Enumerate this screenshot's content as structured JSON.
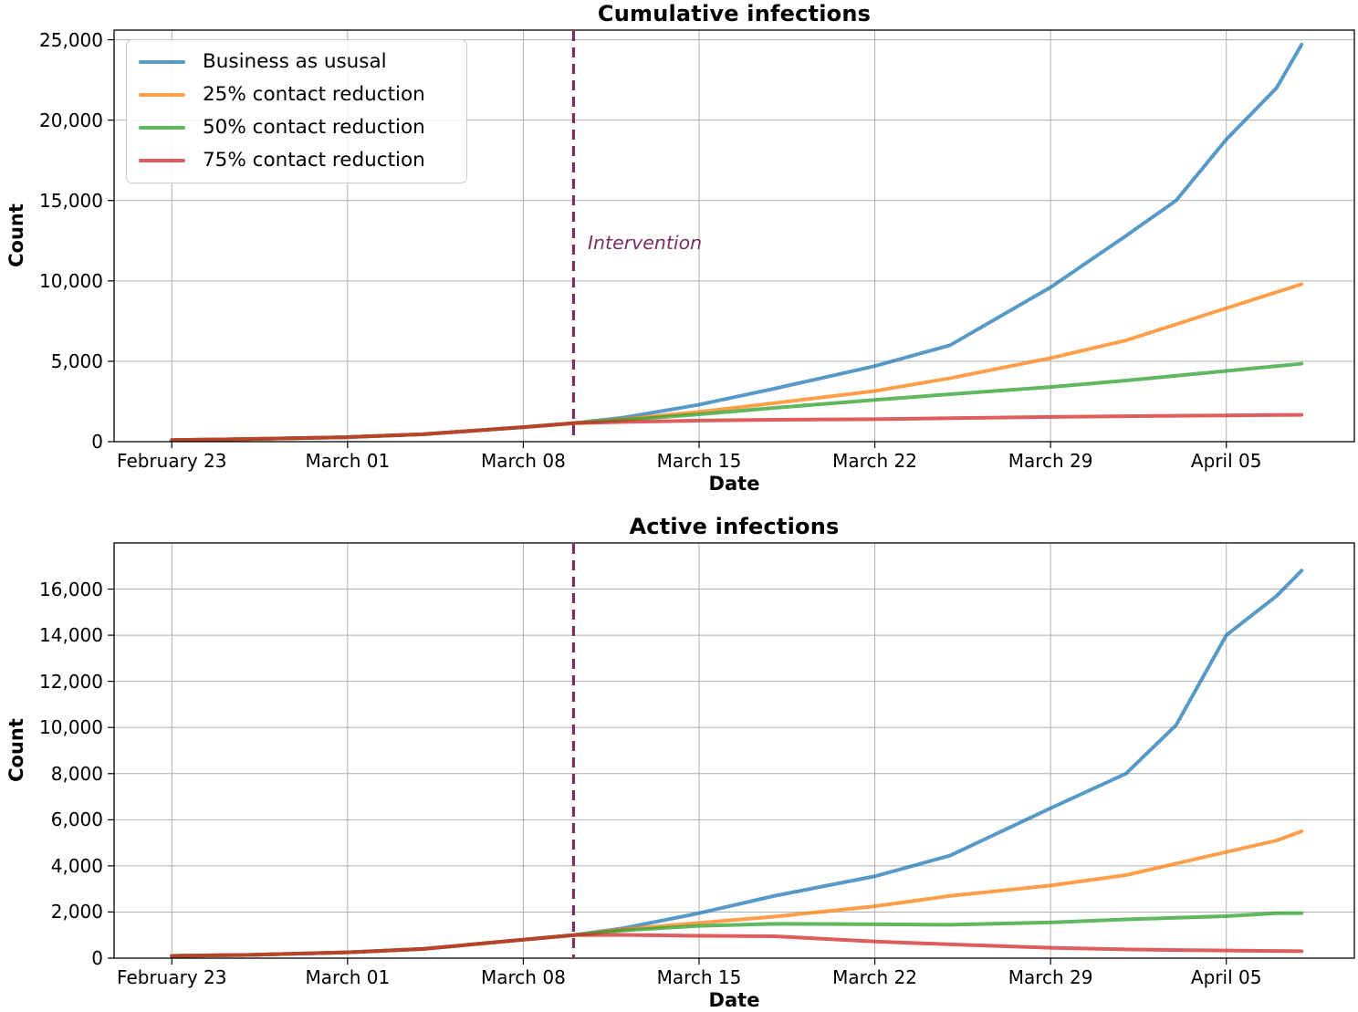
{
  "colors": {
    "grid": "#b0b0b0",
    "spine": "#000000",
    "intervention_line": "#7a2f62",
    "annotation_text": "#7a2f62"
  },
  "annotation": {
    "label": "Intervention"
  },
  "x_axis": {
    "ticks": [
      {
        "day": 0,
        "label": "February 23"
      },
      {
        "day": 7,
        "label": "March 01"
      },
      {
        "day": 14,
        "label": "March 08"
      },
      {
        "day": 21,
        "label": "March 15"
      },
      {
        "day": 28,
        "label": "March 22"
      },
      {
        "day": 35,
        "label": "March 29"
      },
      {
        "day": 42,
        "label": "April 05"
      }
    ]
  },
  "chart_data": [
    {
      "type": "line",
      "title": "Cumulative infections",
      "xlabel": "Date",
      "ylabel": "Count",
      "xlim_days": [
        -2.3,
        47.1
      ],
      "ylim": [
        0,
        25600
      ],
      "intervention_day": 16,
      "grid": true,
      "y_ticks": [
        {
          "value": 0,
          "label": "0"
        },
        {
          "value": 5000,
          "label": "5,000"
        },
        {
          "value": 10000,
          "label": "10,000"
        },
        {
          "value": 15000,
          "label": "15,000"
        },
        {
          "value": 20000,
          "label": "20,000"
        },
        {
          "value": 25000,
          "label": "25,000"
        }
      ],
      "x_days": [
        0,
        3,
        7,
        10,
        14,
        16,
        18,
        21,
        24,
        28,
        31,
        35,
        38,
        40,
        42,
        44,
        45
      ],
      "series": [
        {
          "name": "Business as ususal",
          "color": "#1f77b4",
          "values": [
            100,
            160,
            280,
            460,
            900,
            1150,
            1500,
            2300,
            3300,
            4700,
            6000,
            9600,
            12800,
            15000,
            18800,
            22000,
            24700
          ]
        },
        {
          "name": "25% contact reduction",
          "color": "#ff7f0e",
          "values": [
            100,
            160,
            280,
            460,
            900,
            1150,
            1400,
            1850,
            2400,
            3150,
            3950,
            5200,
            6300,
            7300,
            8300,
            9300,
            9800
          ]
        },
        {
          "name": "50% contact reduction",
          "color": "#2ca02c",
          "values": [
            100,
            160,
            280,
            460,
            900,
            1150,
            1350,
            1700,
            2100,
            2600,
            2950,
            3400,
            3800,
            4100,
            4400,
            4700,
            4850
          ]
        },
        {
          "name": "75% contact reduction",
          "color": "#d62728",
          "values": [
            100,
            160,
            280,
            460,
            900,
            1150,
            1230,
            1310,
            1360,
            1400,
            1460,
            1540,
            1580,
            1610,
            1630,
            1660,
            1670
          ]
        }
      ]
    },
    {
      "type": "line",
      "title": "Active infections",
      "xlabel": "Date",
      "ylabel": "Count",
      "xlim_days": [
        -2.3,
        47.1
      ],
      "ylim": [
        0,
        18000
      ],
      "intervention_day": 16,
      "grid": true,
      "y_ticks": [
        {
          "value": 0,
          "label": "0"
        },
        {
          "value": 2000,
          "label": "2,000"
        },
        {
          "value": 4000,
          "label": "4,000"
        },
        {
          "value": 6000,
          "label": "6,000"
        },
        {
          "value": 8000,
          "label": "8,000"
        },
        {
          "value": 10000,
          "label": "10,000"
        },
        {
          "value": 12000,
          "label": "12,000"
        },
        {
          "value": 14000,
          "label": "14,000"
        },
        {
          "value": 16000,
          "label": "16,000"
        }
      ],
      "x_days": [
        0,
        3,
        7,
        10,
        14,
        16,
        18,
        21,
        24,
        28,
        31,
        35,
        38,
        40,
        42,
        44,
        45
      ],
      "series": [
        {
          "name": "Business as ususal",
          "color": "#1f77b4",
          "values": [
            100,
            140,
            250,
            400,
            800,
            1000,
            1300,
            1950,
            2700,
            3550,
            4450,
            6500,
            8000,
            10100,
            14000,
            15700,
            16800
          ]
        },
        {
          "name": "25% contact reduction",
          "color": "#ff7f0e",
          "values": [
            100,
            140,
            250,
            400,
            800,
            1000,
            1250,
            1530,
            1800,
            2250,
            2700,
            3150,
            3600,
            4100,
            4600,
            5100,
            5500
          ]
        },
        {
          "name": "50% contact reduction",
          "color": "#2ca02c",
          "values": [
            100,
            140,
            250,
            400,
            800,
            1000,
            1200,
            1400,
            1490,
            1470,
            1450,
            1550,
            1680,
            1750,
            1820,
            1950,
            1950
          ]
        },
        {
          "name": "75% contact reduction",
          "color": "#d62728",
          "values": [
            100,
            140,
            250,
            400,
            800,
            1000,
            1010,
            970,
            950,
            720,
            600,
            450,
            380,
            350,
            330,
            310,
            300
          ]
        }
      ]
    }
  ]
}
